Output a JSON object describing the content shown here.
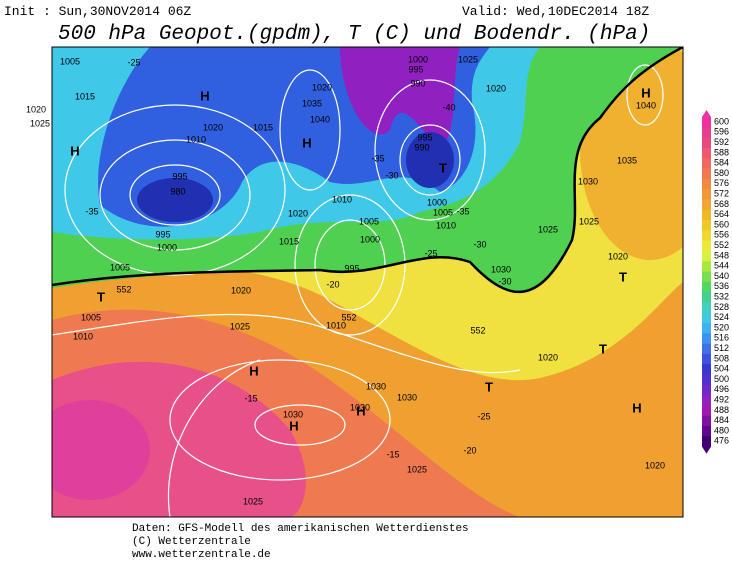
{
  "header": {
    "init": "Init : Sun,30NOV2014 06Z",
    "valid": "Valid: Wed,10DEC2014 18Z",
    "title": "500 hPa Geopot.(gpdm), T (C) und Bodendr. (hPa)"
  },
  "colorbar": {
    "levels": [
      600,
      596,
      592,
      588,
      584,
      580,
      576,
      572,
      568,
      564,
      560,
      556,
      552,
      548,
      544,
      540,
      536,
      532,
      528,
      524,
      520,
      516,
      512,
      508,
      504,
      500,
      496,
      492,
      488,
      484,
      480,
      476
    ],
    "colors": [
      "#f030a0",
      "#e83c90",
      "#e84880",
      "#f05870",
      "#f06860",
      "#f07850",
      "#f08840",
      "#f09838",
      "#f0a830",
      "#f0b828",
      "#f0c828",
      "#f0d830",
      "#f0e838",
      "#d8f040",
      "#a8e840",
      "#78e050",
      "#50d860",
      "#40d090",
      "#40d0c0",
      "#40c8e0",
      "#40b0f0",
      "#4090f0",
      "#4070e8",
      "#4050e0",
      "#3838d0",
      "#5030d0",
      "#7028c8",
      "#9020c0",
      "#a018b0",
      "#8010a0",
      "#600890",
      "#400070"
    ]
  },
  "map_labels": [
    "1005",
    "-25",
    "1015",
    "1020",
    "1025",
    "H",
    "H",
    "1020",
    "1015",
    "1010",
    "995",
    "980",
    "-35",
    "995",
    "1000",
    "1005",
    "T",
    "552",
    "1005",
    "1010",
    "1020",
    "1025",
    "1015",
    "1020",
    "1010",
    "1005",
    "1000",
    "995",
    "-20",
    "552",
    "1010",
    "H",
    "1040",
    "1035",
    "1020",
    "1000",
    "995",
    "990",
    "-40",
    "-35",
    "-30",
    "995",
    "990",
    "T",
    "1000",
    "1005",
    "-35",
    "1010",
    "1025",
    "1020",
    "H",
    "1040",
    "1035",
    "1030",
    "1025",
    "1025",
    "-30",
    "-25",
    "1030",
    "1020",
    "T",
    "T",
    "-30",
    "552",
    "1020",
    "H",
    "-15",
    "1030",
    "1030",
    "1030",
    "H",
    "1030",
    "H",
    "T",
    "-25",
    "-20",
    "-15",
    "1025",
    "1020",
    "H",
    "1025"
  ],
  "footer": [
    "Daten: GFS-Modell des amerikanischen Wetterdienstes",
    "(C) Wetterzentrale",
    "www.wetterzentrale.de"
  ]
}
